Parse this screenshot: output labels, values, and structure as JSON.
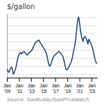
{
  "chart_data": {
    "type": "line",
    "title": "$/gallon",
    "annotations": [
      "Source: GasBuddy/GasPriceWatch"
    ],
    "color": "#1a3f6f",
    "grid": true,
    "tick_labels": "x",
    "ylim": [
      1.3,
      5.2
    ],
    "yticks": [
      1.5,
      2,
      2.5,
      3,
      3.5,
      4,
      4.5,
      5
    ],
    "categories": [
      "Jan\n'09",
      null,
      null,
      null,
      null,
      null,
      null,
      null,
      null,
      null,
      null,
      null,
      null,
      null,
      null,
      null,
      null,
      null,
      null,
      null,
      null,
      null,
      null,
      null,
      "Jan\n'11",
      null,
      null,
      null,
      null,
      null,
      null,
      null,
      null,
      null,
      null,
      null,
      null,
      null,
      null,
      null,
      null,
      null,
      null,
      null,
      null,
      null,
      null,
      null,
      "Jan\n'13",
      null,
      null,
      null,
      null,
      null,
      null,
      null,
      null,
      null,
      null,
      null,
      null,
      null,
      null,
      null,
      null,
      null,
      null,
      null,
      null,
      null,
      null,
      null,
      "Jan\n'15",
      null,
      null,
      null,
      null,
      null,
      null,
      null,
      null,
      null,
      null,
      null,
      null,
      null,
      null,
      null,
      null,
      null,
      null,
      null,
      null,
      null,
      null,
      null,
      "Jan\n'17",
      null,
      null,
      null,
      null,
      null,
      null,
      null,
      null,
      null,
      null,
      null,
      null,
      null,
      null,
      null,
      null,
      null,
      null,
      null,
      null,
      null,
      null,
      null,
      "Jan\n'19",
      null,
      null,
      null,
      null,
      null,
      null,
      null,
      null,
      null,
      null,
      null,
      null,
      null,
      null,
      null,
      null,
      null,
      null,
      null,
      null,
      null,
      null,
      null,
      "Jan\n'21",
      null,
      null,
      null,
      null,
      null,
      null,
      null,
      null,
      null,
      null,
      null,
      null,
      null,
      null,
      null,
      null,
      null,
      null,
      null,
      null,
      null,
      null,
      null,
      "Jan\n'23",
      null,
      null,
      null,
      null,
      null,
      null,
      null,
      null,
      null,
      null,
      null
    ],
    "values": [
      1.8,
      1.75,
      1.72,
      1.68,
      1.62,
      1.7,
      1.78,
      1.85,
      1.9,
      1.95,
      1.88,
      1.82,
      1.55,
      1.52,
      1.58,
      1.65,
      1.75,
      1.85,
      1.95,
      2.1,
      2.25,
      2.4,
      2.55,
      2.65,
      2.72,
      2.78,
      2.82,
      2.85,
      2.8,
      2.75,
      2.78,
      2.82,
      2.85,
      2.88,
      2.9,
      2.87,
      2.83,
      2.8,
      2.75,
      2.7,
      2.68,
      2.72,
      2.75,
      2.78,
      2.82,
      2.85,
      2.88,
      2.9,
      2.92,
      2.95,
      3.0,
      3.08,
      3.15,
      3.22,
      3.28,
      3.35,
      3.4,
      3.45,
      3.48,
      3.5,
      3.52,
      3.55,
      3.58,
      3.6,
      3.55,
      3.5,
      3.45,
      3.4,
      3.35,
      3.3,
      3.25,
      3.2,
      3.15,
      3.1,
      3.05,
      3.0,
      2.95,
      2.88,
      2.8,
      2.7,
      2.55,
      2.4,
      2.25,
      2.15,
      2.05,
      2.0,
      2.05,
      2.1,
      2.18,
      2.28,
      2.38,
      2.48,
      2.55,
      2.6,
      2.65,
      2.68,
      2.7,
      2.72,
      2.75,
      2.78,
      2.82,
      2.85,
      2.88,
      2.9,
      2.88,
      2.85,
      2.82,
      2.78,
      2.75,
      2.7,
      2.65,
      2.6,
      2.5,
      2.38,
      2.25,
      2.1,
      1.95,
      1.85,
      1.8,
      1.78,
      1.8,
      1.85,
      1.9,
      1.95,
      2.0,
      2.08,
      2.15,
      2.22,
      2.3,
      2.4,
      2.55,
      2.7,
      2.85,
      3.0,
      3.15,
      3.3,
      3.5,
      3.8,
      4.1,
      4.4,
      4.65,
      4.85,
      5.0,
      4.9,
      4.7,
      4.45,
      4.2,
      4.0,
      3.85,
      3.72,
      3.6,
      3.52,
      3.65,
      3.75,
      3.8,
      3.82,
      3.78,
      3.72,
      3.65,
      3.55,
      3.45,
      3.35,
      3.6,
      3.65,
      3.55,
      3.5,
      3.42,
      3.35,
      3.28,
      3.2,
      3.1,
      3.0,
      2.85,
      2.7,
      2.55,
      2.42,
      2.3,
      2.22,
      2.18,
      2.2
    ]
  }
}
